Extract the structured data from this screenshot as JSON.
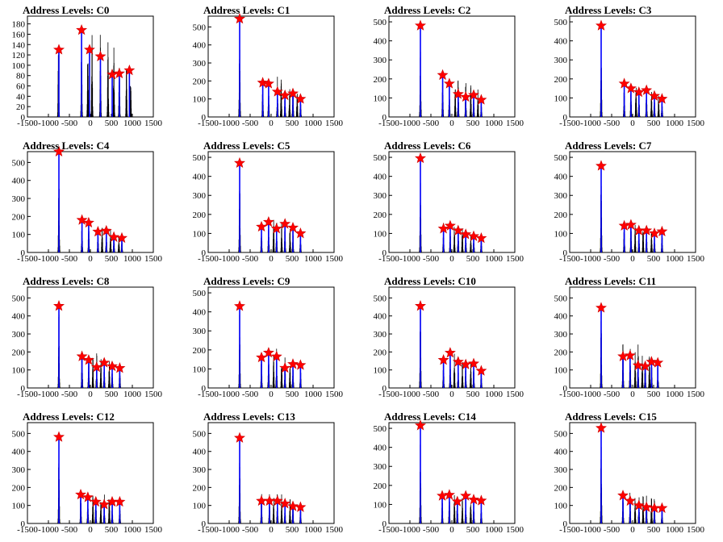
{
  "chart_data": [
    {
      "type": "bar",
      "title": "Address Levels: C0",
      "xlim": [
        -1500,
        1500
      ],
      "ylim": [
        0,
        195
      ],
      "xticks": [
        -1500,
        -1000,
        -500,
        0,
        500,
        1000,
        1500
      ],
      "yticks": [
        0,
        20,
        40,
        60,
        80,
        100,
        120,
        140,
        160,
        180
      ],
      "x": [
        -750,
        -210,
        -20,
        240,
        520,
        690,
        930
      ],
      "values": [
        130,
        168,
        130,
        117,
        82,
        84,
        90
      ],
      "peaks": [
        [
          -760,
          155
        ],
        [
          -210,
          175
        ],
        [
          -60,
          165
        ],
        [
          40,
          170
        ],
        [
          240,
          180
        ],
        [
          420,
          155
        ],
        [
          560,
          140
        ],
        [
          690,
          118
        ],
        [
          860,
          110
        ],
        [
          960,
          95
        ]
      ]
    },
    {
      "type": "bar",
      "title": "Address Levels: C1",
      "xlim": [
        -1500,
        1500
      ],
      "ylim": [
        0,
        560
      ],
      "xticks": [
        -1500,
        -1000,
        -500,
        0,
        500,
        1000,
        1500
      ],
      "yticks": [
        0,
        100,
        200,
        300,
        400,
        500
      ],
      "x": [
        -750,
        -200,
        -60,
        150,
        330,
        520,
        700
      ],
      "values": [
        545,
        190,
        185,
        140,
        120,
        130,
        100
      ],
      "peaks": [
        [
          -750,
          550
        ],
        [
          -200,
          215
        ],
        [
          -60,
          195
        ],
        [
          150,
          225
        ],
        [
          240,
          240
        ],
        [
          330,
          165
        ],
        [
          440,
          175
        ],
        [
          520,
          190
        ],
        [
          620,
          155
        ],
        [
          700,
          120
        ]
      ]
    },
    {
      "type": "bar",
      "title": "Address Levels: C2",
      "xlim": [
        -1500,
        1500
      ],
      "ylim": [
        0,
        530
      ],
      "xticks": [
        -1500,
        -1000,
        -500,
        0,
        500,
        1000,
        1500
      ],
      "yticks": [
        0,
        100,
        200,
        300,
        400,
        500
      ],
      "x": [
        -750,
        -220,
        -60,
        150,
        330,
        520,
        700
      ],
      "values": [
        480,
        220,
        175,
        120,
        105,
        115,
        90
      ],
      "peaks": [
        [
          -750,
          490
        ],
        [
          -220,
          230
        ],
        [
          -60,
          210
        ],
        [
          80,
          185
        ],
        [
          150,
          210
        ],
        [
          330,
          205
        ],
        [
          450,
          185
        ],
        [
          520,
          140
        ],
        [
          620,
          155
        ],
        [
          700,
          100
        ]
      ]
    },
    {
      "type": "bar",
      "title": "Address Levels: C3",
      "xlim": [
        -1500,
        1500
      ],
      "ylim": [
        0,
        530
      ],
      "xticks": [
        -1500,
        -1000,
        -500,
        0,
        500,
        1000,
        1500
      ],
      "yticks": [
        0,
        100,
        200,
        300,
        400,
        500
      ],
      "x": [
        -750,
        -200,
        -40,
        150,
        330,
        520,
        700
      ],
      "values": [
        480,
        175,
        150,
        130,
        140,
        110,
        95
      ],
      "peaks": [
        [
          -750,
          490
        ],
        [
          -200,
          195
        ],
        [
          -40,
          200
        ],
        [
          80,
          185
        ],
        [
          150,
          165
        ],
        [
          330,
          185
        ],
        [
          450,
          160
        ],
        [
          520,
          155
        ],
        [
          620,
          135
        ],
        [
          700,
          110
        ]
      ]
    },
    {
      "type": "bar",
      "title": "Address Levels: C4",
      "xlim": [
        -1500,
        1500
      ],
      "ylim": [
        0,
        560
      ],
      "xticks": [
        -1500,
        -1000,
        -500,
        0,
        500,
        1000,
        1500
      ],
      "yticks": [
        0,
        100,
        200,
        300,
        400,
        500
      ],
      "x": [
        -750,
        -200,
        -40,
        180,
        380,
        560,
        750
      ],
      "values": [
        560,
        180,
        165,
        115,
        120,
        85,
        80
      ],
      "peaks": [
        [
          -750,
          565
        ],
        [
          -200,
          195
        ],
        [
          -40,
          185
        ],
        [
          180,
          150
        ],
        [
          280,
          160
        ],
        [
          380,
          145
        ],
        [
          480,
          130
        ],
        [
          560,
          125
        ],
        [
          680,
          100
        ],
        [
          750,
          85
        ]
      ]
    },
    {
      "type": "bar",
      "title": "Address Levels: C5",
      "xlim": [
        -1500,
        1500
      ],
      "ylim": [
        0,
        530
      ],
      "xticks": [
        -1500,
        -1000,
        -500,
        0,
        500,
        1000,
        1500
      ],
      "yticks": [
        0,
        100,
        200,
        300,
        400,
        500
      ],
      "x": [
        -750,
        -230,
        -60,
        130,
        330,
        520,
        700
      ],
      "values": [
        470,
        135,
        160,
        125,
        150,
        130,
        100
      ],
      "peaks": [
        [
          -750,
          480
        ],
        [
          -230,
          160
        ],
        [
          -60,
          185
        ],
        [
          60,
          180
        ],
        [
          130,
          185
        ],
        [
          250,
          175
        ],
        [
          330,
          175
        ],
        [
          450,
          160
        ],
        [
          520,
          150
        ],
        [
          700,
          120
        ]
      ]
    },
    {
      "type": "bar",
      "title": "Address Levels: C6",
      "xlim": [
        -1500,
        1500
      ],
      "ylim": [
        0,
        530
      ],
      "xticks": [
        -1500,
        -1000,
        -500,
        0,
        500,
        1000,
        1500
      ],
      "yticks": [
        0,
        100,
        200,
        300,
        400,
        500
      ],
      "x": [
        -750,
        -200,
        -40,
        150,
        330,
        520,
        700
      ],
      "values": [
        495,
        125,
        140,
        115,
        95,
        85,
        75
      ],
      "peaks": [
        [
          -750,
          500
        ],
        [
          -200,
          170
        ],
        [
          -40,
          160
        ],
        [
          60,
          150
        ],
        [
          150,
          165
        ],
        [
          250,
          150
        ],
        [
          330,
          140
        ],
        [
          450,
          110
        ],
        [
          520,
          125
        ],
        [
          700,
          90
        ]
      ]
    },
    {
      "type": "bar",
      "title": "Address Levels: C7",
      "xlim": [
        -1500,
        1500
      ],
      "ylim": [
        0,
        530
      ],
      "xticks": [
        -1500,
        -1000,
        -500,
        0,
        500,
        1000,
        1500
      ],
      "yticks": [
        0,
        100,
        200,
        300,
        400,
        500
      ],
      "x": [
        -750,
        -200,
        -40,
        150,
        330,
        520,
        700
      ],
      "values": [
        455,
        140,
        145,
        115,
        115,
        100,
        110
      ],
      "peaks": [
        [
          -750,
          465
        ],
        [
          -200,
          175
        ],
        [
          -40,
          205
        ],
        [
          60,
          170
        ],
        [
          150,
          160
        ],
        [
          250,
          160
        ],
        [
          330,
          140
        ],
        [
          450,
          130
        ],
        [
          520,
          115
        ],
        [
          700,
          125
        ]
      ]
    },
    {
      "type": "bar",
      "title": "Address Levels: C8",
      "xlim": [
        -1500,
        1500
      ],
      "ylim": [
        0,
        560
      ],
      "xticks": [
        -1500,
        -1000,
        -500,
        0,
        500,
        1000,
        1500
      ],
      "yticks": [
        0,
        100,
        200,
        300,
        400,
        500
      ],
      "x": [
        -750,
        -200,
        -40,
        150,
        330,
        520,
        700
      ],
      "values": [
        455,
        175,
        155,
        115,
        140,
        120,
        110
      ],
      "peaks": [
        [
          -750,
          465
        ],
        [
          -200,
          255
        ],
        [
          -40,
          205
        ],
        [
          60,
          195
        ],
        [
          150,
          210
        ],
        [
          250,
          180
        ],
        [
          330,
          165
        ],
        [
          450,
          170
        ],
        [
          520,
          150
        ],
        [
          700,
          140
        ]
      ]
    },
    {
      "type": "bar",
      "title": "Address Levels: C9",
      "xlim": [
        -1500,
        1500
      ],
      "ylim": [
        0,
        530
      ],
      "xticks": [
        -1500,
        -1000,
        -500,
        0,
        500,
        1000,
        1500
      ],
      "yticks": [
        0,
        100,
        200,
        300,
        400,
        500
      ],
      "x": [
        -750,
        -230,
        -60,
        130,
        330,
        520,
        700
      ],
      "values": [
        430,
        160,
        185,
        165,
        105,
        125,
        120
      ],
      "peaks": [
        [
          -750,
          440
        ],
        [
          -230,
          195
        ],
        [
          -60,
          215
        ],
        [
          60,
          195
        ],
        [
          130,
          215
        ],
        [
          250,
          185
        ],
        [
          330,
          190
        ],
        [
          450,
          150
        ],
        [
          520,
          150
        ],
        [
          700,
          125
        ]
      ]
    },
    {
      "type": "bar",
      "title": "Address Levels: C10",
      "xlim": [
        -1500,
        1500
      ],
      "ylim": [
        0,
        560
      ],
      "xticks": [
        -1500,
        -1000,
        -500,
        0,
        500,
        1000,
        1500
      ],
      "yticks": [
        0,
        100,
        200,
        300,
        400,
        500
      ],
      "x": [
        -750,
        -200,
        -40,
        150,
        330,
        520,
        700
      ],
      "values": [
        455,
        155,
        195,
        145,
        130,
        135,
        95
      ],
      "peaks": [
        [
          -750,
          470
        ],
        [
          -200,
          185
        ],
        [
          -40,
          210
        ],
        [
          60,
          205
        ],
        [
          150,
          170
        ],
        [
          250,
          175
        ],
        [
          330,
          165
        ],
        [
          450,
          150
        ],
        [
          520,
          145
        ],
        [
          700,
          120
        ]
      ]
    },
    {
      "type": "bar",
      "title": "Address Levels: C11",
      "xlim": [
        -1500,
        1500
      ],
      "ylim": [
        0,
        560
      ],
      "xticks": [
        -1500,
        -1000,
        -500,
        0,
        500,
        1000,
        1500
      ],
      "yticks": [
        0,
        100,
        200,
        300,
        400,
        500
      ],
      "x": [
        -750,
        -230,
        -60,
        130,
        300,
        450,
        600
      ],
      "values": [
        445,
        175,
        180,
        125,
        120,
        145,
        140
      ],
      "peaks": [
        [
          -750,
          455
        ],
        [
          -230,
          265
        ],
        [
          -60,
          255
        ],
        [
          60,
          230
        ],
        [
          130,
          265
        ],
        [
          230,
          200
        ],
        [
          300,
          220
        ],
        [
          400,
          185
        ],
        [
          450,
          190
        ],
        [
          600,
          175
        ]
      ]
    },
    {
      "type": "bar",
      "title": "Address Levels: C12",
      "xlim": [
        -1500,
        1500
      ],
      "ylim": [
        0,
        560
      ],
      "xticks": [
        -1500,
        -1000,
        -500,
        0,
        500,
        1000,
        1500
      ],
      "yticks": [
        0,
        100,
        200,
        300,
        400,
        500
      ],
      "x": [
        -750,
        -230,
        -60,
        130,
        330,
        520,
        700
      ],
      "values": [
        480,
        160,
        145,
        120,
        105,
        120,
        120
      ],
      "peaks": [
        [
          -750,
          485
        ],
        [
          -230,
          195
        ],
        [
          -60,
          180
        ],
        [
          60,
          180
        ],
        [
          130,
          195
        ],
        [
          250,
          175
        ],
        [
          330,
          180
        ],
        [
          450,
          205
        ],
        [
          520,
          140
        ],
        [
          700,
          135
        ]
      ]
    },
    {
      "type": "bar",
      "title": "Address Levels: C13",
      "xlim": [
        -1500,
        1500
      ],
      "ylim": [
        0,
        560
      ],
      "xticks": [
        -1500,
        -1000,
        -500,
        0,
        500,
        1000,
        1500
      ],
      "yticks": [
        0,
        100,
        200,
        300,
        400,
        500
      ],
      "x": [
        -750,
        -230,
        -40,
        150,
        330,
        520,
        700
      ],
      "values": [
        475,
        125,
        125,
        125,
        110,
        95,
        90
      ],
      "peaks": [
        [
          -750,
          480
        ],
        [
          -230,
          185
        ],
        [
          -40,
          185
        ],
        [
          60,
          160
        ],
        [
          150,
          180
        ],
        [
          250,
          170
        ],
        [
          330,
          150
        ],
        [
          450,
          150
        ],
        [
          520,
          135
        ],
        [
          700,
          110
        ]
      ]
    },
    {
      "type": "bar",
      "title": "Address Levels: C14",
      "xlim": [
        -1500,
        1500
      ],
      "ylim": [
        0,
        530
      ],
      "xticks": [
        -1500,
        -1000,
        -500,
        0,
        500,
        1000,
        1500
      ],
      "yticks": [
        0,
        100,
        200,
        300,
        400,
        500
      ],
      "x": [
        -750,
        -230,
        -60,
        130,
        330,
        520,
        700
      ],
      "values": [
        515,
        145,
        150,
        115,
        145,
        125,
        120
      ],
      "peaks": [
        [
          -750,
          520
        ],
        [
          -230,
          175
        ],
        [
          -60,
          180
        ],
        [
          60,
          165
        ],
        [
          130,
          175
        ],
        [
          250,
          165
        ],
        [
          330,
          170
        ],
        [
          450,
          150
        ],
        [
          520,
          160
        ],
        [
          700,
          130
        ]
      ]
    },
    {
      "type": "bar",
      "title": "Address Levels: C15",
      "xlim": [
        -1500,
        1500
      ],
      "ylim": [
        0,
        560
      ],
      "xticks": [
        -1500,
        -1000,
        -500,
        0,
        500,
        1000,
        1500
      ],
      "yticks": [
        0,
        100,
        200,
        300,
        400,
        500
      ],
      "x": [
        -750,
        -230,
        -60,
        150,
        330,
        520,
        700
      ],
      "values": [
        530,
        155,
        125,
        100,
        90,
        85,
        85
      ],
      "peaks": [
        [
          -750,
          540
        ],
        [
          -230,
          200
        ],
        [
          -60,
          200
        ],
        [
          60,
          175
        ],
        [
          150,
          195
        ],
        [
          250,
          185
        ],
        [
          330,
          175
        ],
        [
          450,
          165
        ],
        [
          520,
          150
        ],
        [
          700,
          120
        ]
      ]
    }
  ],
  "colors": {
    "axis": "#000000",
    "dist_black": "#000000",
    "dist_blue": "#0000ff",
    "marker_fill": "#ff0000",
    "marker_stroke": "#cc0000"
  }
}
